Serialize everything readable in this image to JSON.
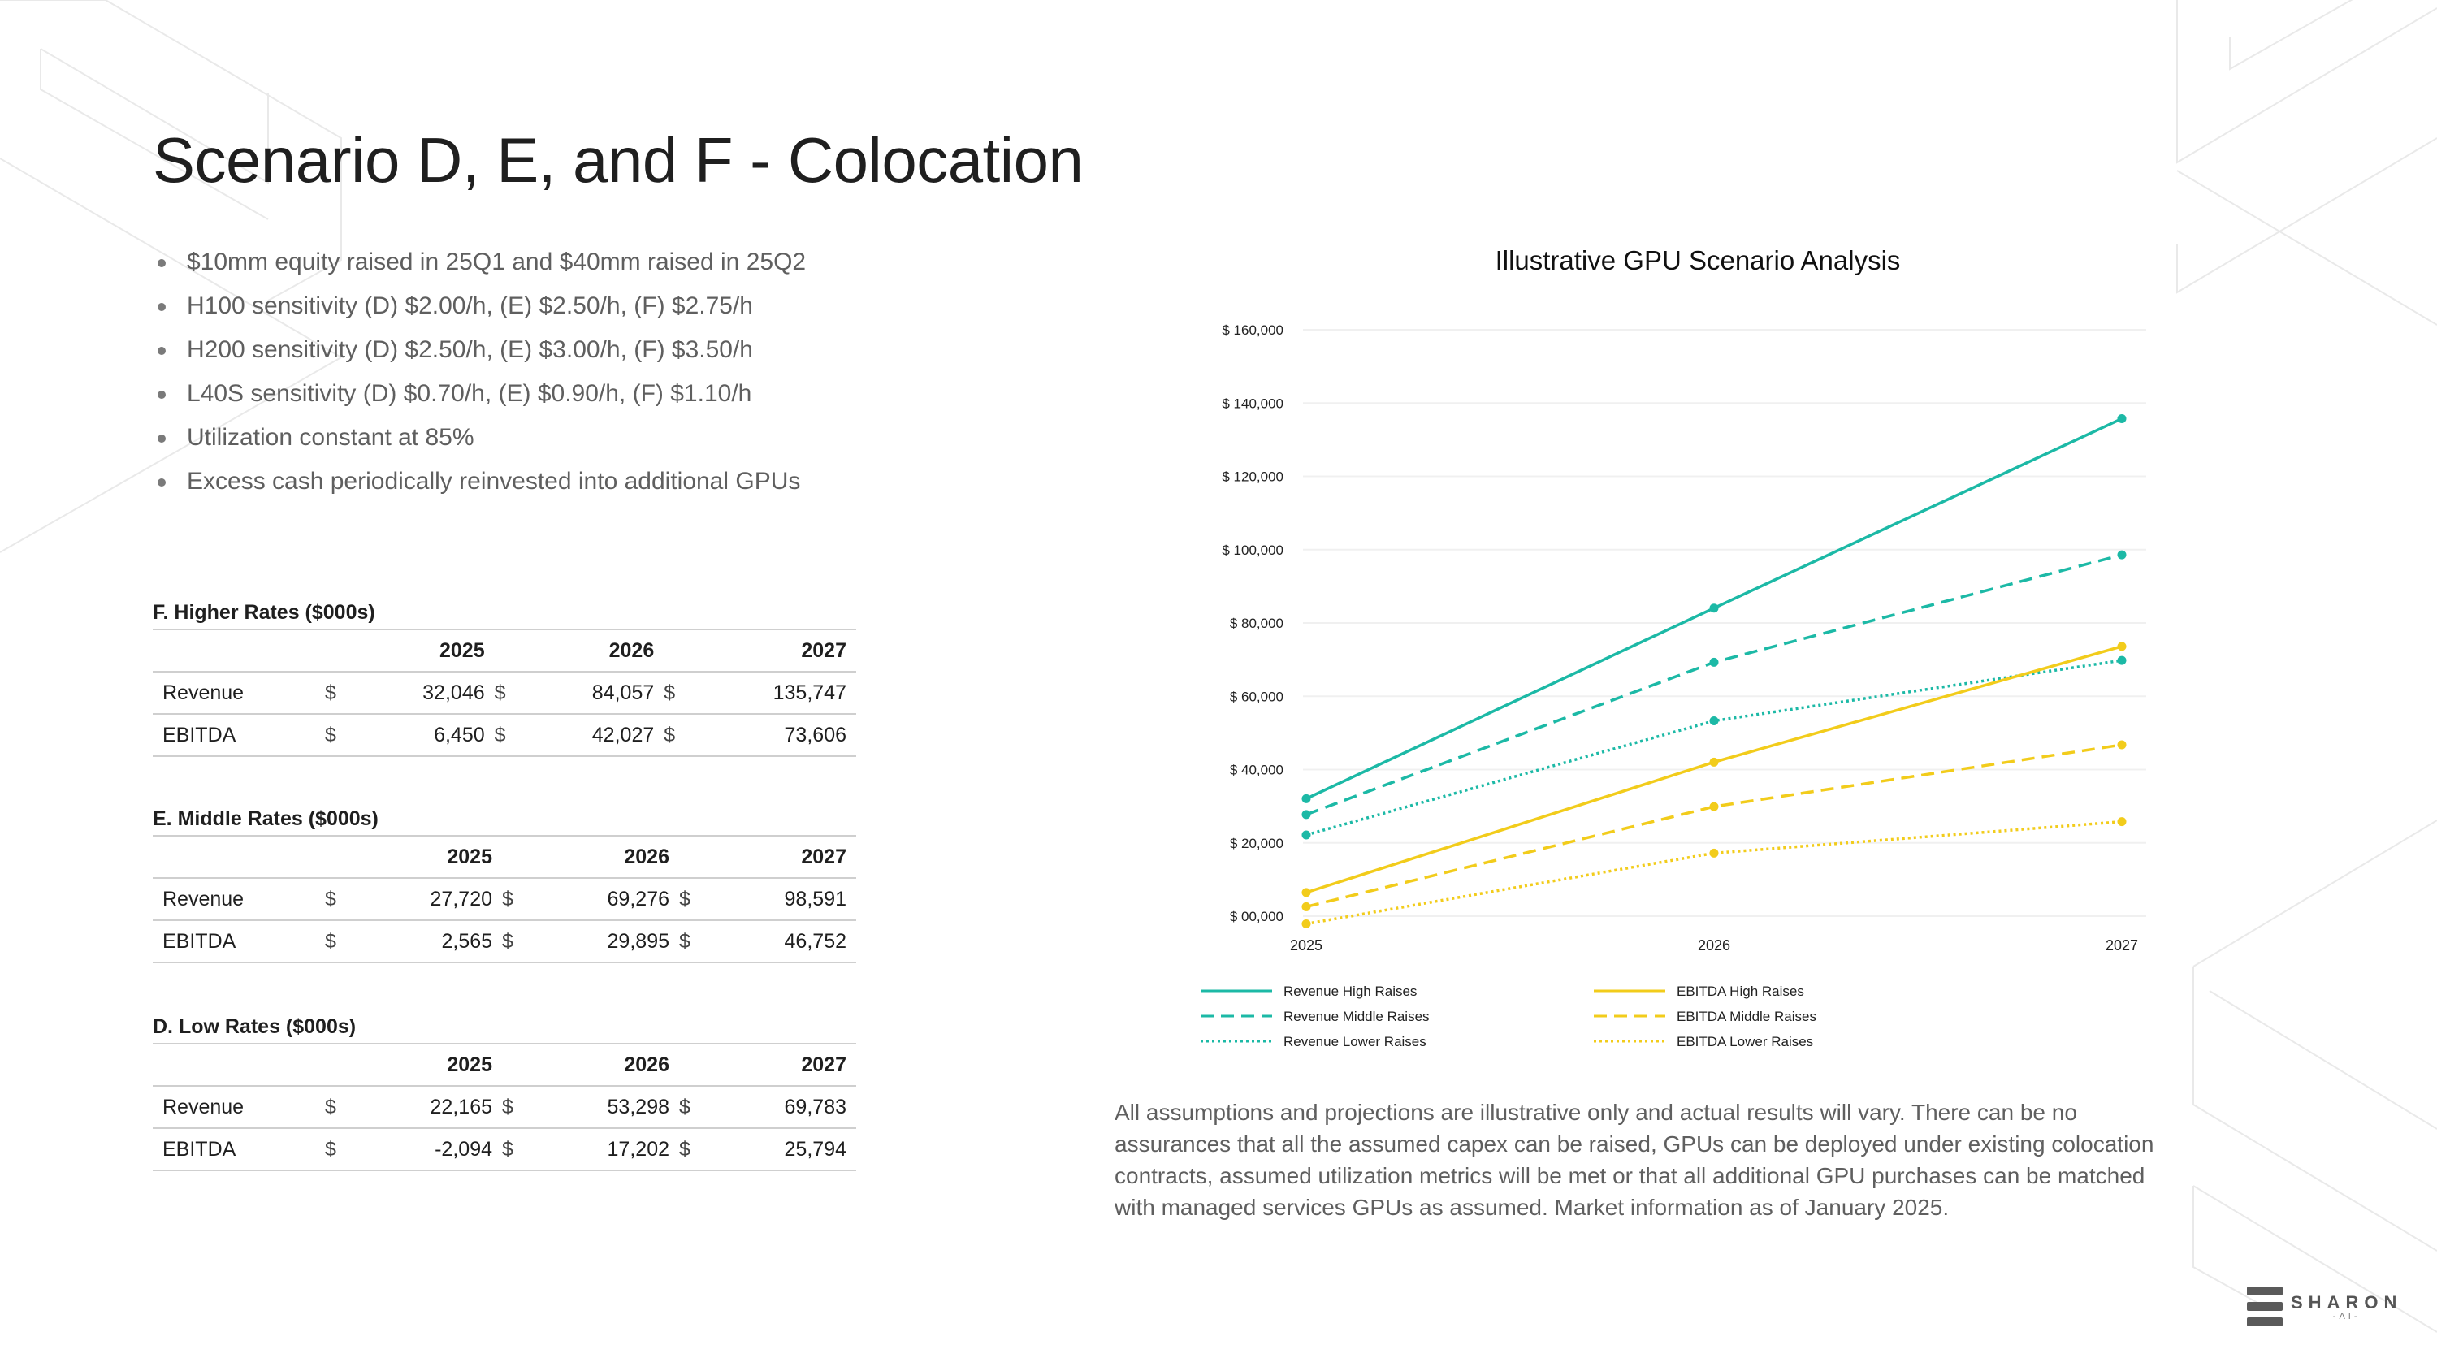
{
  "page": {
    "title": "Scenario D, E, and F - Colocation",
    "bullets": [
      "$10mm equity raised in 25Q1 and $40mm raised in 25Q2",
      "H100 sensitivity (D) $2.00/h, (E) $2.50/h, (F) $2.75/h",
      "H200 sensitivity (D) $2.50/h, (E) $3.00/h, (F) $3.50/h",
      "L40S sensitivity (D) $0.70/h, (E) $0.90/h, (F) $1.10/h",
      "Utilization constant at 85%",
      "Excess cash periodically reinvested into additional GPUs"
    ],
    "disclaimer": "All assumptions and projections are illustrative only and actual results will vary. There can be no assurances that all the assumed capex can be raised, GPUs can be deployed under existing colocation contracts, assumed utilization metrics will be met or that all additional GPU purchases can be matched with managed services GPUs as assumed. Market information as of January 2025.",
    "logo": {
      "name": "SHARON",
      "sub": "-AI-"
    }
  },
  "tables": [
    {
      "title": "F. Higher Rates ($000s)",
      "years": [
        "2025",
        "2026",
        "2027"
      ],
      "currency": "$",
      "rows": [
        {
          "label": "Revenue",
          "values": [
            "32,046",
            "84,057",
            "135,747"
          ]
        },
        {
          "label": "EBITDA",
          "values": [
            "6,450",
            "42,027",
            "73,606"
          ]
        }
      ]
    },
    {
      "title": "E. Middle Rates ($000s)",
      "years": [
        "2025",
        "2026",
        "2027"
      ],
      "currency": "$",
      "rows": [
        {
          "label": "Revenue",
          "values": [
            "27,720",
            "69,276",
            "98,591"
          ]
        },
        {
          "label": "EBITDA",
          "values": [
            "2,565",
            "29,895",
            "46,752"
          ]
        }
      ]
    },
    {
      "title": "D. Low Rates ($000s)",
      "years": [
        "2025",
        "2026",
        "2027"
      ],
      "currency": "$",
      "rows": [
        {
          "label": "Revenue",
          "values": [
            "22,165",
            "53,298",
            "69,783"
          ]
        },
        {
          "label": "EBITDA",
          "values": [
            "-2,094",
            "17,202",
            "25,794"
          ]
        }
      ]
    }
  ],
  "chart_data": {
    "type": "line",
    "title": "Illustrative GPU Scenario Analysis",
    "x": [
      "2025",
      "2026",
      "2027"
    ],
    "ylim": [
      0,
      160000
    ],
    "yticks": [
      0,
      20000,
      40000,
      60000,
      80000,
      100000,
      120000,
      140000,
      160000
    ],
    "ytick_labels": [
      "$ 00,000",
      "$ 20,000",
      "$ 40,000",
      "$ 60,000",
      "$ 80,000",
      "$ 100,000",
      "$ 120,000",
      "$ 140,000",
      "$ 160,000"
    ],
    "series": [
      {
        "name": "Revenue High Raises",
        "values": [
          32046,
          84057,
          135747
        ],
        "color": "#1cb9a6",
        "dash": "solid"
      },
      {
        "name": "Revenue Middle Raises",
        "values": [
          27720,
          69276,
          98591
        ],
        "color": "#1cb9a6",
        "dash": "dashed"
      },
      {
        "name": "Revenue Lower Raises",
        "values": [
          22165,
          53298,
          69783
        ],
        "color": "#1cb9a6",
        "dash": "dotted"
      },
      {
        "name": "EBITDA High Raises",
        "values": [
          6450,
          42027,
          73606
        ],
        "color": "#f2cc1b",
        "dash": "solid"
      },
      {
        "name": "EBITDA Middle Raises",
        "values": [
          2565,
          29895,
          46752
        ],
        "color": "#f2cc1b",
        "dash": "dashed"
      },
      {
        "name": "EBITDA Lower Raises",
        "values": [
          -2094,
          17202,
          25794
        ],
        "color": "#f2cc1b",
        "dash": "dotted"
      }
    ],
    "legend": "bottom"
  }
}
